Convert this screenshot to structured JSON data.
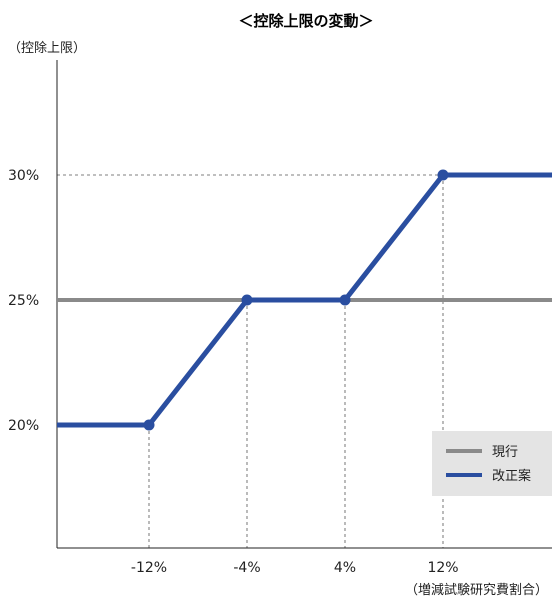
{
  "chart_data": {
    "type": "line",
    "title": "＜控除上限の変動＞",
    "ylabel": "（控除上限）",
    "xlabel": "（増減試験研究費割合）",
    "x_ticks": [
      {
        "value": -12,
        "label": "-12%"
      },
      {
        "value": -4,
        "label": "-4%"
      },
      {
        "value": 4,
        "label": "4%"
      },
      {
        "value": 12,
        "label": "12%"
      }
    ],
    "y_ticks": [
      {
        "value": 20,
        "label": "20%"
      },
      {
        "value": 25,
        "label": "25%"
      },
      {
        "value": 30,
        "label": "30%"
      }
    ],
    "xlim": [
      -20,
      21
    ],
    "ylim": [
      15,
      35
    ],
    "legend_position": "bottom-right",
    "series": [
      {
        "name": "現行",
        "color": "#8a8a8a",
        "x": [
          -20,
          21
        ],
        "y": [
          25,
          25
        ],
        "markers": false
      },
      {
        "name": "改正案",
        "color": "#2a4ea0",
        "x": [
          -20,
          -12,
          -4,
          4,
          12,
          21
        ],
        "y": [
          20,
          20,
          25,
          25,
          30,
          30
        ],
        "markers": true,
        "marker_points": [
          {
            "x": -12,
            "y": 20
          },
          {
            "x": -4,
            "y": 25
          },
          {
            "x": 4,
            "y": 25
          },
          {
            "x": 12,
            "y": 30
          }
        ]
      }
    ]
  }
}
